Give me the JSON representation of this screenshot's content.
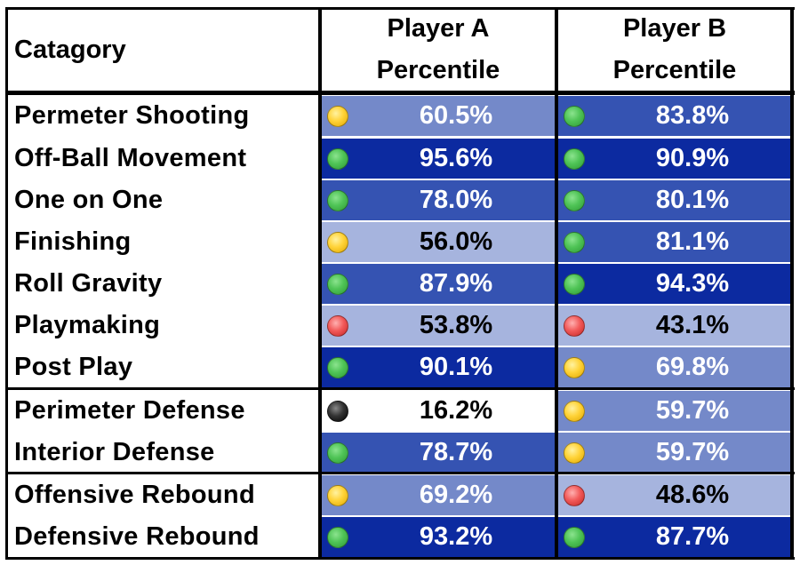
{
  "header": {
    "category": "Catagory",
    "player_a": [
      "Player A",
      "Percentile"
    ],
    "player_b": [
      "Player B",
      "Percentile"
    ]
  },
  "colors": {
    "tier_dark": "#0c2aa0",
    "tier_mid": "#3553b2",
    "tier_light": "#7489c9",
    "tier_pale": "#a6b4de",
    "tier_white": "#ffffff",
    "grid": "#000000"
  },
  "rows": [
    {
      "category": "Permeter Shooting",
      "a": {
        "value": "60.5%",
        "dot": "yellow",
        "tier": "light"
      },
      "b": {
        "value": "83.8%",
        "dot": "green",
        "tier": "mid"
      }
    },
    {
      "category": "Off-Ball Movement",
      "a": {
        "value": "95.6%",
        "dot": "green",
        "tier": "dark"
      },
      "b": {
        "value": "90.9%",
        "dot": "green",
        "tier": "dark"
      }
    },
    {
      "category": "One on One",
      "a": {
        "value": "78.0%",
        "dot": "green",
        "tier": "mid"
      },
      "b": {
        "value": "80.1%",
        "dot": "green",
        "tier": "mid"
      }
    },
    {
      "category": "Finishing",
      "a": {
        "value": "56.0%",
        "dot": "yellow",
        "tier": "pale"
      },
      "b": {
        "value": "81.1%",
        "dot": "green",
        "tier": "mid"
      }
    },
    {
      "category": "Roll Gravity",
      "a": {
        "value": "87.9%",
        "dot": "green",
        "tier": "mid"
      },
      "b": {
        "value": "94.3%",
        "dot": "green",
        "tier": "dark"
      }
    },
    {
      "category": "Playmaking",
      "a": {
        "value": "53.8%",
        "dot": "red",
        "tier": "pale"
      },
      "b": {
        "value": "43.1%",
        "dot": "red",
        "tier": "pale"
      }
    },
    {
      "category": "Post Play",
      "a": {
        "value": "90.1%",
        "dot": "green",
        "tier": "dark"
      },
      "b": {
        "value": "69.8%",
        "dot": "yellow",
        "tier": "light"
      }
    },
    {
      "category": "Perimeter Defense",
      "a": {
        "value": "16.2%",
        "dot": "black",
        "tier": "white"
      },
      "b": {
        "value": "59.7%",
        "dot": "yellow",
        "tier": "light"
      }
    },
    {
      "category": "Interior Defense",
      "a": {
        "value": "78.7%",
        "dot": "green",
        "tier": "mid"
      },
      "b": {
        "value": "59.7%",
        "dot": "yellow",
        "tier": "light"
      }
    },
    {
      "category": "Offensive Rebound",
      "a": {
        "value": "69.2%",
        "dot": "yellow",
        "tier": "light"
      },
      "b": {
        "value": "48.6%",
        "dot": "red",
        "tier": "pale"
      }
    },
    {
      "category": "Defensive Rebound",
      "a": {
        "value": "93.2%",
        "dot": "green",
        "tier": "dark"
      },
      "b": {
        "value": "87.7%",
        "dot": "green",
        "tier": "dark"
      }
    }
  ]
}
